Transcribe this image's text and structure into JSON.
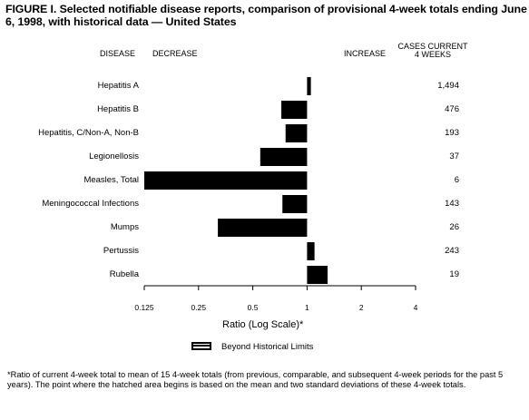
{
  "title": "FIGURE I. Selected notifiable disease reports, comparison of provisional 4-week totals ending June 6, 1998, with historical data — United States",
  "headers": {
    "disease": "DISEASE",
    "decrease": "DECREASE",
    "increase": "INCREASE",
    "cases_line1": "CASES CURRENT",
    "cases_line2": "4 WEEKS"
  },
  "legend": {
    "label": "Beyond Historical Limits"
  },
  "footnote": "*Ratio of current 4-week total to mean of 15 4-week totals (from previous, comparable, and subsequent 4-week periods for the past 5 years). The point where the hatched area begins is based on the mean and two standard deviations of these 4-week totals.",
  "chart_data": {
    "type": "bar",
    "orientation": "horizontal",
    "x_scale": "log2",
    "xlabel": "Ratio (Log Scale)*",
    "xlim": [
      0.125,
      4
    ],
    "x_ticks": [
      "0.125",
      "0.25",
      "0.5",
      "1",
      "2",
      "4"
    ],
    "categories": [
      "Hepatitis A",
      "Hepatitis B",
      "Hepatitis, C/Non-A, Non-B",
      "Legionellosis",
      "Measles, Total",
      "Meningococcal Infections",
      "Mumps",
      "Pertussis",
      "Rubella"
    ],
    "values": [
      1.05,
      0.72,
      0.76,
      0.55,
      0.125,
      0.73,
      0.32,
      1.1,
      1.3
    ],
    "cases_current_4_weeks": [
      "1,494",
      "476",
      "193",
      "37",
      "6",
      "143",
      "26",
      "243",
      "19"
    ],
    "baseline": 1
  }
}
